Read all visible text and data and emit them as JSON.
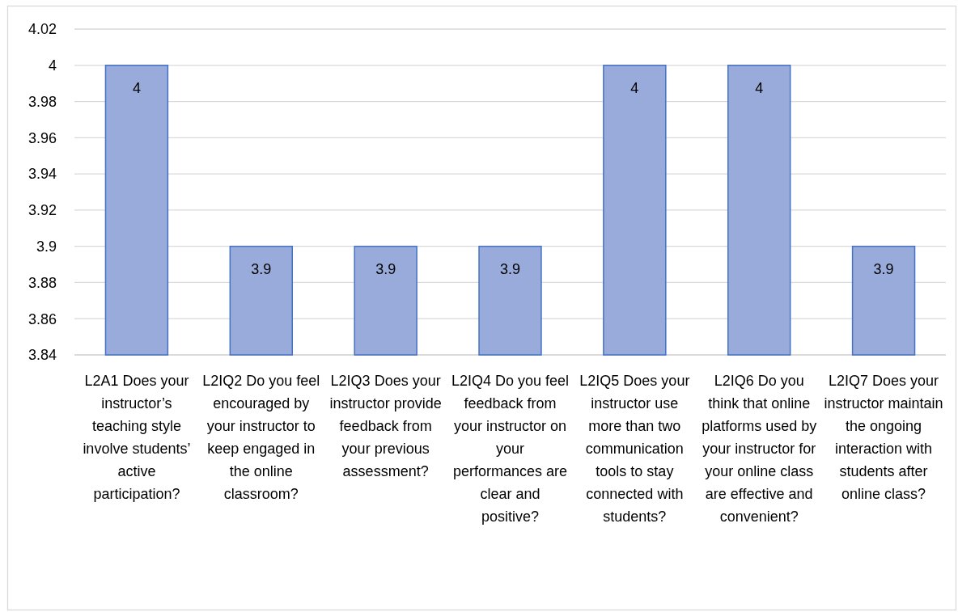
{
  "chart_data": {
    "type": "bar",
    "categories": [
      "L2A1 Does your instructor’s teaching style involve students’ active participation?",
      "L2IQ2 Do you feel encouraged by your instructor to keep engaged in the online classroom?",
      "L2IQ3 Does your instructor provide feedback from your previous assessment?",
      "L2IQ4 Do you feel feedback from your instructor on your performances are clear and positive?",
      "L2IQ5 Does your instructor use more than two communication tools to stay connected with students?",
      "L2IQ6 Do you think that online platforms used by your instructor for your online class are effective and convenient?",
      "L2IQ7 Does your instructor maintain the ongoing interaction with students after online class?"
    ],
    "values": [
      4,
      3.9,
      3.9,
      3.9,
      4,
      4,
      3.9
    ],
    "color": "#99abdb",
    "ylim": [
      3.84,
      4.02
    ],
    "yticks": [
      3.84,
      3.86,
      3.88,
      3.9,
      3.92,
      3.94,
      3.96,
      3.98,
      4,
      4.02
    ],
    "grid": "y",
    "data_labels": true
  }
}
